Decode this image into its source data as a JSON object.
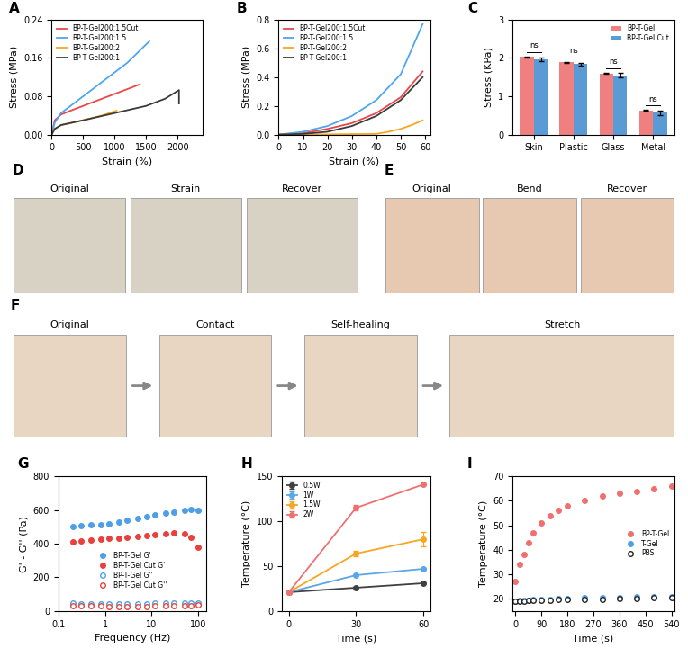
{
  "chart_data": [
    {
      "type": "line",
      "title": "A",
      "x_label": "Strain (%)",
      "y_label": "Stress (MPa)",
      "xlim": [
        0,
        2400
      ],
      "xticks": [
        0,
        500,
        1000,
        1500,
        2000
      ],
      "ylim": [
        0,
        0.24
      ],
      "yticks": [
        {
          "value": 0,
          "label": "0.00"
        },
        0.08,
        0.16,
        0.24
      ],
      "legend": "upper left",
      "series": [
        {
          "name": "BP-T-Gel200:1.5Cut",
          "color": "#e8474a",
          "x": [
            0,
            50,
            150,
            300,
            600,
            900,
            1200,
            1400
          ],
          "values": [
            0,
            0.03,
            0.042,
            0.05,
            0.065,
            0.08,
            0.095,
            0.105
          ]
        },
        {
          "name": "BP-T-Gel200:1.5",
          "color": "#4ea5f0",
          "x": [
            0,
            50,
            150,
            300,
            600,
            900,
            1200,
            1550
          ],
          "values": [
            0,
            0.025,
            0.045,
            0.06,
            0.09,
            0.12,
            0.15,
            0.195
          ]
        },
        {
          "name": "BP-T-Gel200:2",
          "color": "#f5a623",
          "x": [
            0,
            50,
            150,
            500,
            800,
            1030
          ],
          "values": [
            0,
            0.012,
            0.02,
            0.03,
            0.04,
            0.05
          ]
        },
        {
          "name": "BP-T-Gel200:1",
          "color": "#3a3a3a",
          "x": [
            0,
            50,
            150,
            500,
            1000,
            1500,
            1800,
            2020,
            2020
          ],
          "values": [
            0,
            0.012,
            0.02,
            0.03,
            0.045,
            0.06,
            0.075,
            0.093,
            0.065
          ]
        }
      ]
    },
    {
      "type": "line",
      "title": "B",
      "x_label": "Strain (%)",
      "y_label": "Stress (MPa)",
      "xlim": [
        0,
        62
      ],
      "xticks": [
        0,
        10,
        20,
        30,
        40,
        50,
        60
      ],
      "ylim": [
        0,
        0.8
      ],
      "yticks": [
        {
          "value": 0,
          "label": "0.0"
        },
        0.2,
        0.4,
        0.6,
        0.8
      ],
      "legend": "upper left",
      "series": [
        {
          "name": "BP-T-Gel200:1.5Cut",
          "color": "#e8474a",
          "x": [
            0,
            10,
            20,
            30,
            40,
            50,
            59
          ],
          "values": [
            0,
            0.01,
            0.04,
            0.08,
            0.15,
            0.26,
            0.44
          ]
        },
        {
          "name": "BP-T-Gel200:1.5",
          "color": "#4ea5f0",
          "x": [
            0,
            10,
            20,
            30,
            40,
            50,
            59
          ],
          "values": [
            0,
            0.02,
            0.06,
            0.13,
            0.24,
            0.42,
            0.77
          ]
        },
        {
          "name": "BP-T-Gel200:2",
          "color": "#f5a623",
          "x": [
            0,
            20,
            40,
            45,
            50,
            55,
            59
          ],
          "values": [
            0,
            0.002,
            0.005,
            0.02,
            0.04,
            0.07,
            0.1
          ]
        },
        {
          "name": "BP-T-Gel200:1",
          "color": "#3a3a3a",
          "x": [
            0,
            10,
            20,
            30,
            40,
            50,
            59
          ],
          "values": [
            0,
            0.005,
            0.02,
            0.06,
            0.13,
            0.24,
            0.4
          ]
        }
      ]
    },
    {
      "type": "bar",
      "title": "C",
      "y_label": "Stress (KPa)",
      "categories": [
        "Skin",
        "Plastic",
        "Glass",
        "Metal"
      ],
      "ylim": [
        0,
        3
      ],
      "yticks": [
        0,
        1,
        2,
        3
      ],
      "legend": "upper right",
      "annotations": [
        "ns",
        "ns",
        "ns",
        "ns"
      ],
      "series": [
        {
          "name": "BP-T-Gel",
          "color": "#f08080",
          "values": [
            2.03,
            1.89,
            1.6,
            0.63
          ],
          "errors": [
            0.01,
            0.01,
            0.01,
            0.01
          ]
        },
        {
          "name": "BP-T-Gel Cut",
          "color": "#5b9bd5",
          "values": [
            1.97,
            1.84,
            1.55,
            0.57
          ],
          "errors": [
            0.05,
            0.03,
            0.06,
            0.05
          ]
        }
      ]
    },
    {
      "type": "scatter",
      "title": "G",
      "x_label": "Frequency (Hz)",
      "y_label": "G' - G'' (Pa)",
      "log": "x",
      "xlim": [
        0.1,
        150
      ],
      "xticks": [
        0.1,
        1,
        10,
        100
      ],
      "ylim": [
        0,
        800
      ],
      "yticks": [
        0,
        200,
        400,
        600,
        800
      ],
      "legend": "center",
      "x": [
        0.2,
        0.3,
        0.5,
        0.8,
        1.2,
        2,
        3,
        5,
        8,
        12,
        20,
        30,
        50,
        70,
        100
      ],
      "series": [
        {
          "name": "BP-T-Gel G'",
          "color": "#4e9fe8",
          "marker": "circle",
          "values": [
            500,
            505,
            510,
            515,
            520,
            530,
            540,
            550,
            560,
            570,
            580,
            590,
            600,
            605,
            600
          ]
        },
        {
          "name": "BP-T-Gel Cut G'",
          "color": "#e8413c",
          "marker": "circle",
          "values": [
            410,
            415,
            420,
            425,
            430,
            435,
            440,
            445,
            450,
            455,
            460,
            462,
            460,
            440,
            380
          ]
        },
        {
          "name": "BP-T-Gel G''",
          "color": "#4e9fe8",
          "marker": "open_circle",
          "values": [
            45,
            44,
            44,
            43,
            43,
            43,
            44,
            44,
            44,
            45,
            45,
            46,
            46,
            47,
            48
          ]
        },
        {
          "name": "BP-T-Gel Cut G''",
          "color": "#e8413c",
          "marker": "open_circle",
          "values": [
            30,
            30,
            29,
            29,
            28,
            28,
            28,
            28,
            28,
            29,
            29,
            30,
            31,
            33,
            35
          ]
        }
      ]
    },
    {
      "type": "line",
      "title": "H",
      "x_label": "Time (s)",
      "y_label": "Temperature (°C)",
      "xlim": [
        -3,
        63
      ],
      "xticks": [
        0,
        30,
        60
      ],
      "ylim": [
        0,
        150
      ],
      "yticks": [
        0,
        50,
        100,
        150
      ],
      "legend": "upper left",
      "x": [
        0,
        30,
        60
      ],
      "series": [
        {
          "name": "0.5W",
          "color": "#404040",
          "marker": "circle",
          "values": [
            21,
            26,
            31
          ],
          "errors": [
            0.5,
            0.5,
            0.5
          ]
        },
        {
          "name": "1W",
          "color": "#5aa6e6",
          "marker": "circle",
          "values": [
            21,
            40,
            47
          ],
          "errors": [
            0.5,
            1,
            1
          ]
        },
        {
          "name": "1.5W",
          "color": "#f5a623",
          "marker": "circle",
          "values": [
            21,
            64,
            80
          ],
          "errors": [
            0.5,
            3,
            8
          ]
        },
        {
          "name": "2W",
          "color": "#f07070",
          "marker": "circle",
          "values": [
            21,
            115,
            141
          ],
          "errors": [
            0.5,
            3,
            1
          ]
        }
      ]
    },
    {
      "type": "scatter",
      "title": "I",
      "x_label": "Time (s)",
      "y_label": "Temperature (°C)",
      "xlim": [
        -10,
        550
      ],
      "xticks": [
        0,
        90,
        180,
        270,
        360,
        450,
        540
      ],
      "ylim": [
        15,
        70
      ],
      "yticks": [
        20,
        30,
        40,
        50,
        60,
        70
      ],
      "legend": "center right",
      "x": [
        0,
        15,
        30,
        45,
        60,
        90,
        120,
        150,
        180,
        240,
        300,
        360,
        420,
        480,
        540
      ],
      "series": [
        {
          "name": "BP-T-Gel",
          "color": "#f07070",
          "marker": "circle",
          "values": [
            27,
            34,
            38,
            43,
            47,
            51,
            54,
            56,
            58,
            60,
            62,
            63,
            64,
            65,
            66
          ]
        },
        {
          "name": "T-Gel",
          "color": "#4e9fe8",
          "marker": "circle",
          "values": [
            19,
            19.2,
            19.3,
            19.5,
            19.6,
            19.8,
            19.9,
            20,
            20.1,
            20.3,
            20.5,
            20.6,
            20.8,
            21,
            21
          ]
        },
        {
          "name": "PBS",
          "color": "#222222",
          "marker": "open_circle",
          "values": [
            19,
            19,
            19.1,
            19.2,
            19.3,
            19.4,
            19.5,
            19.6,
            19.7,
            19.8,
            19.9,
            20,
            20.2,
            20.3,
            20.4
          ]
        }
      ]
    }
  ],
  "photos": [
    {
      "title": "D",
      "captions": [
        "Original",
        "Strain",
        "Recover"
      ]
    },
    {
      "title": "E",
      "captions": [
        "Original",
        "Bend",
        "Recover"
      ]
    },
    {
      "title": "F",
      "captions": [
        "Original",
        "Contact",
        "Self-healing",
        "Stretch"
      ]
    }
  ]
}
